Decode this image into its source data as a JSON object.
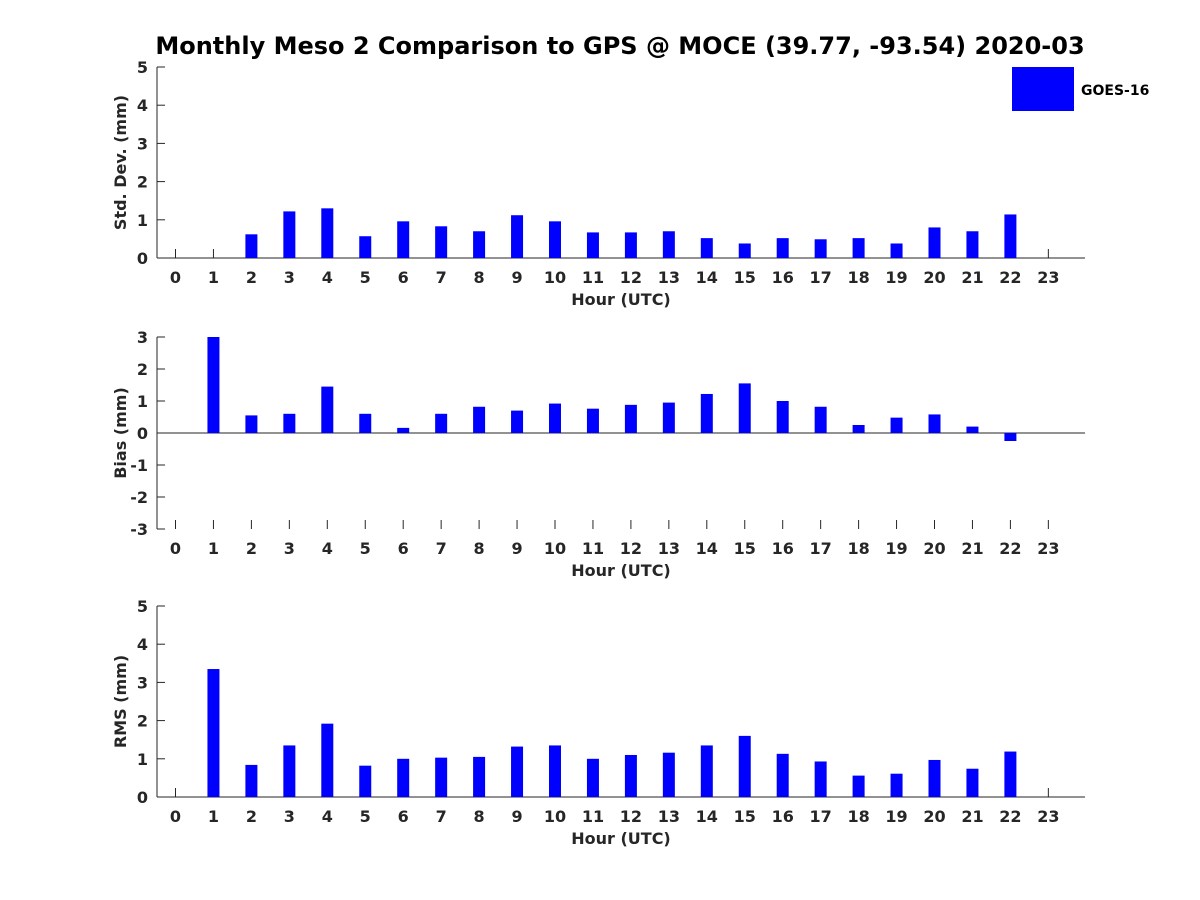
{
  "title": "Monthly Meso 2 Comparison to GPS @ MOCE (39.77, -93.54) 2020-03",
  "legend": {
    "label": "GOES-16",
    "color": "#0000ff"
  },
  "chart_data": [
    {
      "type": "bar",
      "name": "std-dev",
      "xlabel": "Hour (UTC)",
      "ylabel": "Std. Dev. (mm)",
      "ylim": [
        0,
        5
      ],
      "yticks": [
        "0",
        "1",
        "2",
        "3",
        "4",
        "5"
      ],
      "categories": [
        "0",
        "1",
        "2",
        "3",
        "4",
        "5",
        "6",
        "7",
        "8",
        "9",
        "10",
        "11",
        "12",
        "13",
        "14",
        "15",
        "16",
        "17",
        "18",
        "19",
        "20",
        "21",
        "22",
        "23"
      ],
      "series": [
        {
          "name": "GOES-16",
          "values": [
            null,
            null,
            0.62,
            1.22,
            1.3,
            0.57,
            0.96,
            0.83,
            0.7,
            1.12,
            0.96,
            0.67,
            0.67,
            0.7,
            0.52,
            0.38,
            0.52,
            0.49,
            0.52,
            0.38,
            0.8,
            0.7,
            1.14,
            null
          ]
        }
      ]
    },
    {
      "type": "bar",
      "name": "bias",
      "xlabel": "Hour (UTC)",
      "ylabel": "Bias (mm)",
      "ylim": [
        -3,
        3
      ],
      "yticks": [
        "-3",
        "-2",
        "-1",
        "0",
        "1",
        "2",
        "3"
      ],
      "categories": [
        "0",
        "1",
        "2",
        "3",
        "4",
        "5",
        "6",
        "7",
        "8",
        "9",
        "10",
        "11",
        "12",
        "13",
        "14",
        "15",
        "16",
        "17",
        "18",
        "19",
        "20",
        "21",
        "22",
        "23"
      ],
      "series": [
        {
          "name": "GOES-16",
          "values": [
            null,
            3.0,
            0.55,
            0.6,
            1.45,
            0.6,
            0.16,
            0.6,
            0.82,
            0.7,
            0.92,
            0.76,
            0.88,
            0.95,
            1.22,
            1.55,
            1.0,
            0.82,
            0.25,
            0.48,
            0.58,
            0.2,
            -0.25,
            null
          ]
        }
      ]
    },
    {
      "type": "bar",
      "name": "rms",
      "xlabel": "Hour (UTC)",
      "ylabel": "RMS (mm)",
      "ylim": [
        0,
        5
      ],
      "yticks": [
        "0",
        "1",
        "2",
        "3",
        "4",
        "5"
      ],
      "categories": [
        "0",
        "1",
        "2",
        "3",
        "4",
        "5",
        "6",
        "7",
        "8",
        "9",
        "10",
        "11",
        "12",
        "13",
        "14",
        "15",
        "16",
        "17",
        "18",
        "19",
        "20",
        "21",
        "22",
        "23"
      ],
      "series": [
        {
          "name": "GOES-16",
          "values": [
            null,
            3.35,
            0.84,
            1.35,
            1.92,
            0.82,
            1.0,
            1.03,
            1.05,
            1.32,
            1.35,
            1.0,
            1.1,
            1.16,
            1.35,
            1.6,
            1.13,
            0.93,
            0.56,
            0.61,
            0.97,
            0.74,
            1.19,
            null
          ]
        }
      ]
    }
  ]
}
